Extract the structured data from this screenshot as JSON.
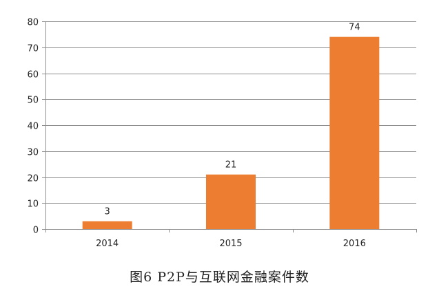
{
  "caption": "图6    P2P与互联网金融案件数",
  "chart_data": {
    "type": "bar",
    "categories": [
      "2014",
      "2015",
      "2016"
    ],
    "values": [
      3,
      21,
      74
    ],
    "title": "",
    "xlabel": "",
    "ylabel": "",
    "ylim": [
      0,
      80
    ],
    "yticks": [
      0,
      10,
      20,
      30,
      40,
      50,
      60,
      70,
      80
    ],
    "grid": true,
    "legend": "none",
    "bar_color": "#ED7D31",
    "grid_color": "#8C8C8C"
  }
}
